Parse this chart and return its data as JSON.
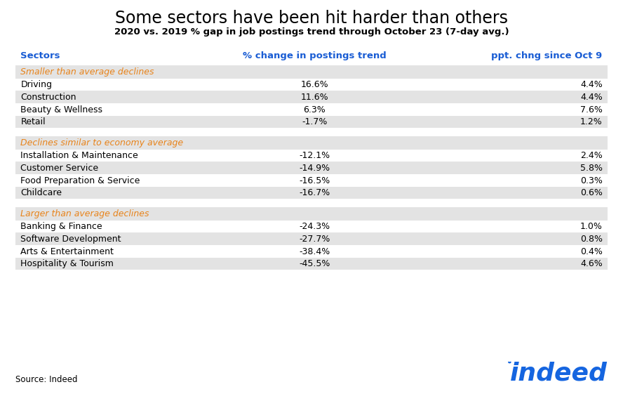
{
  "title": "Some sectors have been hit harder than others",
  "subtitle": "2020 vs. 2019 % gap in job postings trend through October 23 (7-day avg.)",
  "col_headers": [
    "Sectors",
    "% change in postings trend",
    "ppt. chng since Oct 9"
  ],
  "col_header_color": "#1a5dd4",
  "sections": [
    {
      "label": "Smaller than average declines",
      "label_color": "#e8831a",
      "rows": [
        [
          "Driving",
          "16.6%",
          "4.4%"
        ],
        [
          "Construction",
          "11.6%",
          "4.4%"
        ],
        [
          "Beauty & Wellness",
          "6.3%",
          "7.6%"
        ],
        [
          "Retail",
          "-1.7%",
          "1.2%"
        ]
      ]
    },
    {
      "label": "Declines similar to economy average",
      "label_color": "#e8831a",
      "rows": [
        [
          "Installation & Maintenance",
          "-12.1%",
          "2.4%"
        ],
        [
          "Customer Service",
          "-14.9%",
          "5.8%"
        ],
        [
          "Food Preparation & Service",
          "-16.5%",
          "0.3%"
        ],
        [
          "Childcare",
          "-16.7%",
          "0.6%"
        ]
      ]
    },
    {
      "label": "Larger than average declines",
      "label_color": "#e8831a",
      "rows": [
        [
          "Banking & Finance",
          "-24.3%",
          "1.0%"
        ],
        [
          "Software Development",
          "-27.7%",
          "0.8%"
        ],
        [
          "Arts & Entertainment",
          "-38.4%",
          "0.4%"
        ],
        [
          "Hospitality & Tourism",
          "-45.5%",
          "4.6%"
        ]
      ]
    }
  ],
  "source_text": "Source: Indeed",
  "bg_color": "#ffffff",
  "row_white": "#ffffff",
  "row_gray": "#e3e3e3",
  "section_header_bg": "#e3e3e3",
  "gap_color": "#ffffff"
}
